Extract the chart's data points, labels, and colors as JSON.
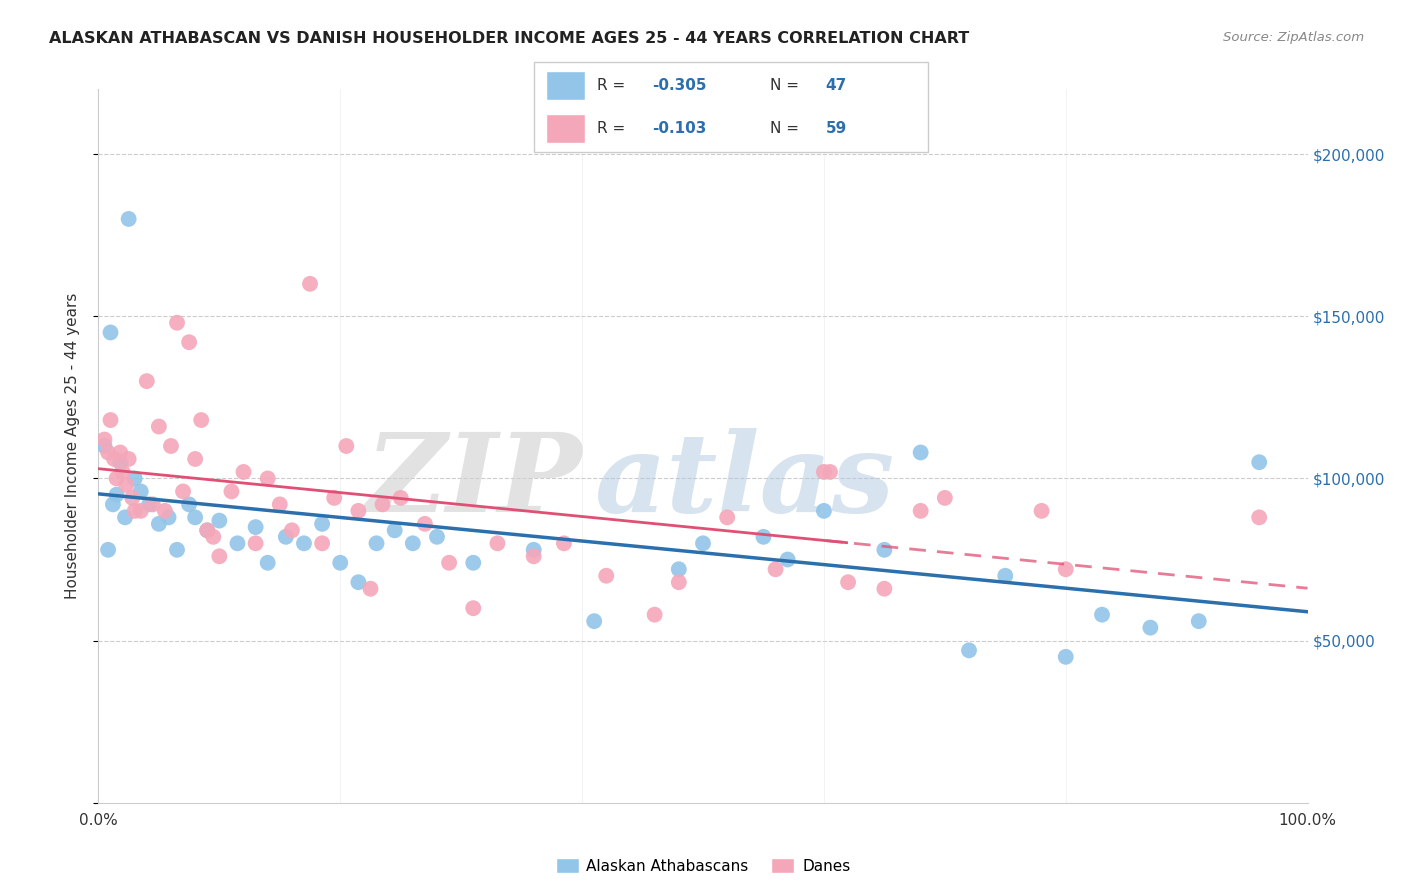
{
  "title": "ALASKAN ATHABASCAN VS DANISH HOUSEHOLDER INCOME AGES 25 - 44 YEARS CORRELATION CHART",
  "source": "Source: ZipAtlas.com",
  "ylabel": "Householder Income Ages 25 - 44 years",
  "yticks": [
    0,
    50000,
    100000,
    150000,
    200000
  ],
  "ytick_labels": [
    "",
    "$50,000",
    "$100,000",
    "$150,000",
    "$200,000"
  ],
  "legend_label_1": "Alaskan Athabascans",
  "legend_label_2": "Danes",
  "blue_color": "#92c5e8",
  "pink_color": "#f4a7b9",
  "blue_line_color": "#2c6fad",
  "pink_line_color": "#e05075",
  "watermark_zip": "ZIP",
  "watermark_atlas": "atlas",
  "R_blue": -0.305,
  "N_blue": 47,
  "R_pink": -0.103,
  "N_pink": 59,
  "blue_x": [
    1.5,
    2.5,
    1.0,
    0.5,
    0.8,
    1.2,
    1.8,
    2.2,
    3.0,
    3.5,
    4.2,
    5.0,
    5.8,
    6.5,
    7.5,
    8.0,
    9.0,
    10.0,
    11.5,
    13.0,
    14.0,
    15.5,
    17.0,
    18.5,
    20.0,
    21.5,
    23.0,
    24.5,
    26.0,
    28.0,
    31.0,
    36.0,
    41.0,
    48.0,
    50.0,
    55.0,
    57.0,
    60.0,
    65.0,
    68.0,
    72.0,
    75.0,
    80.0,
    83.0,
    87.0,
    91.0,
    96.0
  ],
  "blue_y": [
    95000,
    180000,
    145000,
    110000,
    78000,
    92000,
    105000,
    88000,
    100000,
    96000,
    92000,
    86000,
    88000,
    78000,
    92000,
    88000,
    84000,
    87000,
    80000,
    85000,
    74000,
    82000,
    80000,
    86000,
    74000,
    68000,
    80000,
    84000,
    80000,
    82000,
    74000,
    78000,
    56000,
    72000,
    80000,
    82000,
    75000,
    90000,
    78000,
    108000,
    47000,
    70000,
    45000,
    58000,
    54000,
    56000,
    105000
  ],
  "pink_x": [
    0.5,
    0.8,
    1.0,
    1.3,
    1.5,
    1.8,
    2.0,
    2.3,
    2.5,
    2.8,
    3.0,
    3.5,
    4.0,
    4.5,
    5.0,
    5.5,
    6.0,
    6.5,
    7.0,
    7.5,
    8.0,
    8.5,
    9.0,
    9.5,
    10.0,
    11.0,
    12.0,
    13.0,
    14.0,
    15.0,
    16.0,
    17.5,
    18.5,
    19.5,
    20.5,
    21.5,
    22.5,
    23.5,
    25.0,
    27.0,
    29.0,
    31.0,
    33.0,
    36.0,
    38.5,
    42.0,
    46.0,
    48.0,
    52.0,
    56.0,
    60.0,
    60.5,
    62.0,
    65.0,
    68.0,
    70.0,
    78.0,
    80.0,
    96.0
  ],
  "pink_y": [
    112000,
    108000,
    118000,
    106000,
    100000,
    108000,
    102000,
    98000,
    106000,
    94000,
    90000,
    90000,
    130000,
    92000,
    116000,
    90000,
    110000,
    148000,
    96000,
    142000,
    106000,
    118000,
    84000,
    82000,
    76000,
    96000,
    102000,
    80000,
    100000,
    92000,
    84000,
    160000,
    80000,
    94000,
    110000,
    90000,
    66000,
    92000,
    94000,
    86000,
    74000,
    60000,
    80000,
    76000,
    80000,
    70000,
    58000,
    68000,
    88000,
    72000,
    102000,
    102000,
    68000,
    66000,
    90000,
    94000,
    90000,
    72000,
    88000
  ]
}
